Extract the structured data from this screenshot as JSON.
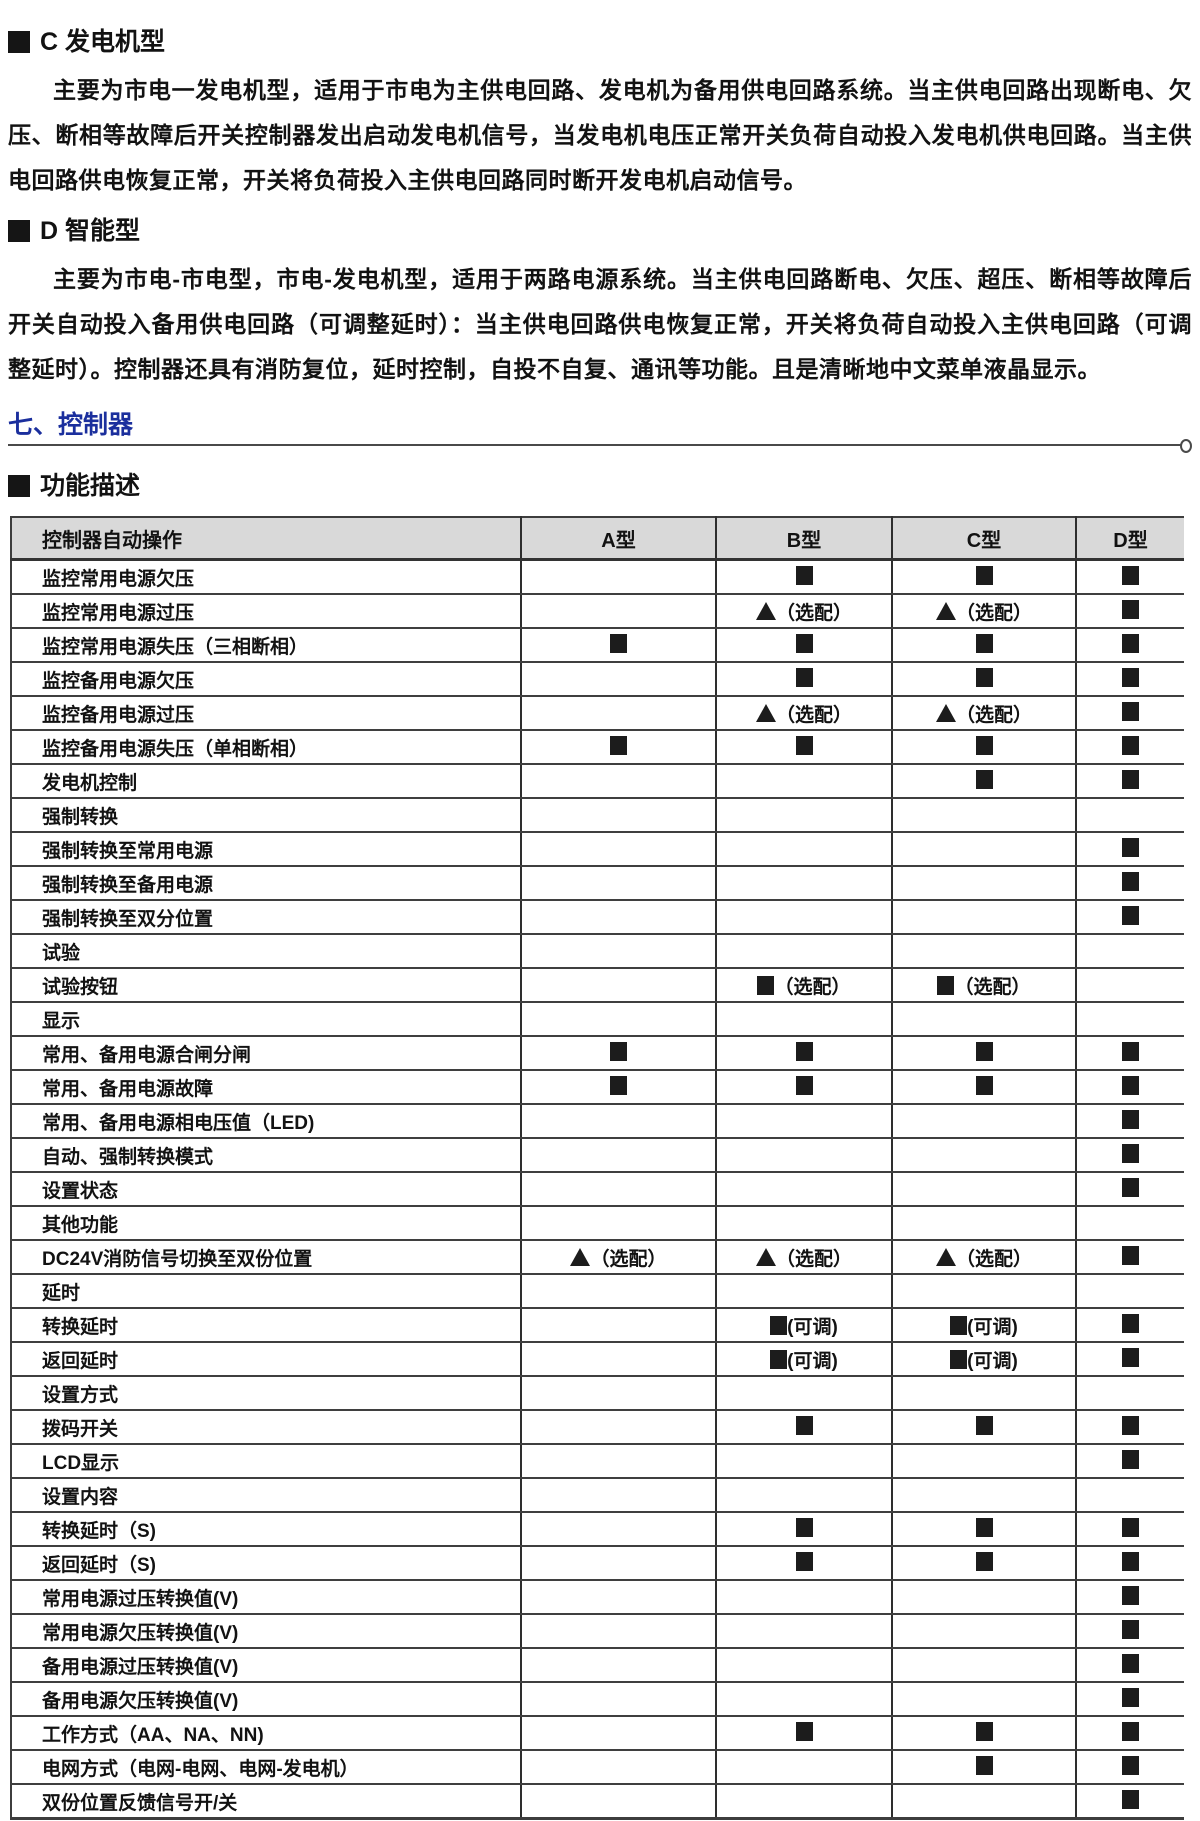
{
  "page": {
    "section_c": {
      "title": "C 发电机型",
      "body": "主要为市电一发电机型，适用于市电为主供电回路、发电机为备用供电回路系统。当主供电回路出现断电、欠压、断相等故障后开关控制器发出启动发电机信号，当发电机电压正常开关负荷自动投入发电机供电回路。当主供电回路供电恢复正常，开关将负荷投入主供电回路同时断开发电机启动信号。"
    },
    "section_d": {
      "title": "D 智能型",
      "body": "主要为市电-市电型，市电-发电机型，适用于两路电源系统。当主供电回路断电、欠压、超压、断相等故障后开关自动投入备用供电回路（可调整延时）：当主供电回路供电恢复正常，开关将负荷自动投入主供电回路（可调整延时）。控制器还具有消防复位，延时控制，自投不自复、通讯等功能。且是清晰地中文菜单液晶显示。"
    },
    "controller_heading": "七、控制器",
    "function_heading": "功能描述"
  },
  "colors": {
    "heading_blue": "#1b2f9d",
    "header_gray": "#d9d9d9",
    "mark_black": "#1c1c1c"
  },
  "table": {
    "headers": [
      "控制器自动操作",
      "A型",
      "B型",
      "C型",
      "D型"
    ],
    "marks": {
      "square_glyph": "■",
      "triangle_glyph": "▲",
      "optional": "（选配）",
      "adjustable": "(可调)"
    },
    "rows": [
      {
        "label": "监控常用电源欠压",
        "cells": [
          "",
          "sq",
          "sq",
          "sq"
        ]
      },
      {
        "label": "监控常用电源过压",
        "cells": [
          "",
          "tri_opt",
          "tri_opt",
          "sq"
        ]
      },
      {
        "label": "监控常用电源失压（三相断相）",
        "cells": [
          "sq",
          "sq",
          "sq",
          "sq"
        ]
      },
      {
        "label": "监控备用电源欠压",
        "cells": [
          "",
          "sq",
          "sq",
          "sq"
        ]
      },
      {
        "label": "监控备用电源过压",
        "cells": [
          "",
          "tri_opt",
          "tri_opt",
          "sq"
        ]
      },
      {
        "label": "监控备用电源失压（单相断相）",
        "cells": [
          "sq",
          "sq",
          "sq",
          "sq"
        ]
      },
      {
        "label": "发电机控制",
        "cells": [
          "",
          "",
          "sq",
          "sq"
        ]
      },
      {
        "label": "强制转换",
        "cells": [
          "",
          "",
          "",
          ""
        ]
      },
      {
        "label": "强制转换至常用电源",
        "cells": [
          "",
          "",
          "",
          "sq"
        ]
      },
      {
        "label": "强制转换至备用电源",
        "cells": [
          "",
          "",
          "",
          "sq"
        ]
      },
      {
        "label": "强制转换至双分位置",
        "cells": [
          "",
          "",
          "",
          "sq"
        ]
      },
      {
        "label": "试验",
        "cells": [
          "",
          "",
          "",
          ""
        ]
      },
      {
        "label": "试验按钮",
        "cells": [
          "",
          "sq_opt",
          "sq_opt",
          ""
        ]
      },
      {
        "label": "显示",
        "cells": [
          "",
          "",
          "",
          ""
        ]
      },
      {
        "label": "常用、备用电源合闸分闸",
        "cells": [
          "sq",
          "sq",
          "sq",
          "sq"
        ]
      },
      {
        "label": "常用、备用电源故障",
        "cells": [
          "sq",
          "sq",
          "sq",
          "sq"
        ]
      },
      {
        "label": "常用、备用电源相电压值（LED)",
        "cells": [
          "",
          "",
          "",
          "sq"
        ]
      },
      {
        "label": "自动、强制转换模式",
        "cells": [
          "",
          "",
          "",
          "sq"
        ]
      },
      {
        "label": "设置状态",
        "cells": [
          "",
          "",
          "",
          "sq"
        ]
      },
      {
        "label": "其他功能",
        "cells": [
          "",
          "",
          "",
          ""
        ]
      },
      {
        "label": "DC24V消防信号切换至双份位置",
        "cells": [
          "tri_opt",
          "tri_opt",
          "tri_opt",
          "sq"
        ]
      },
      {
        "label": "延时",
        "cells": [
          "",
          "",
          "",
          ""
        ]
      },
      {
        "label": "转换延时",
        "cells": [
          "",
          "sq_adj",
          "sq_adj",
          "sq"
        ]
      },
      {
        "label": "返回延时",
        "cells": [
          "",
          "sq_adj",
          "sq_adj",
          "sq"
        ]
      },
      {
        "label": "设置方式",
        "cells": [
          "",
          "",
          "",
          ""
        ]
      },
      {
        "label": "拨码开关",
        "cells": [
          "",
          "sq",
          "sq",
          "sq"
        ]
      },
      {
        "label": "LCD显示",
        "cells": [
          "",
          "",
          "",
          "sq"
        ]
      },
      {
        "label": "设置内容",
        "cells": [
          "",
          "",
          "",
          ""
        ]
      },
      {
        "label": "转换延时（S)",
        "cells": [
          "",
          "sq",
          "sq",
          "sq"
        ]
      },
      {
        "label": "返回延时（S)",
        "cells": [
          "",
          "sq",
          "sq",
          "sq"
        ]
      },
      {
        "label": "常用电源过压转换值(V)",
        "cells": [
          "",
          "",
          "",
          "sq"
        ]
      },
      {
        "label": "常用电源欠压转换值(V)",
        "cells": [
          "",
          "",
          "",
          "sq"
        ]
      },
      {
        "label": "备用电源过压转换值(V)",
        "cells": [
          "",
          "",
          "",
          "sq"
        ]
      },
      {
        "label": "备用电源欠压转换值(V)",
        "cells": [
          "",
          "",
          "",
          "sq"
        ]
      },
      {
        "label": "工作方式（AA、NA、NN)",
        "cells": [
          "",
          "sq",
          "sq",
          "sq"
        ]
      },
      {
        "label": "电网方式（电网-电网、电网-发电机）",
        "cells": [
          "",
          "",
          "sq",
          "sq"
        ]
      },
      {
        "label": "双份位置反馈信号开/关",
        "cells": [
          "",
          "",
          "",
          "sq"
        ]
      }
    ]
  }
}
